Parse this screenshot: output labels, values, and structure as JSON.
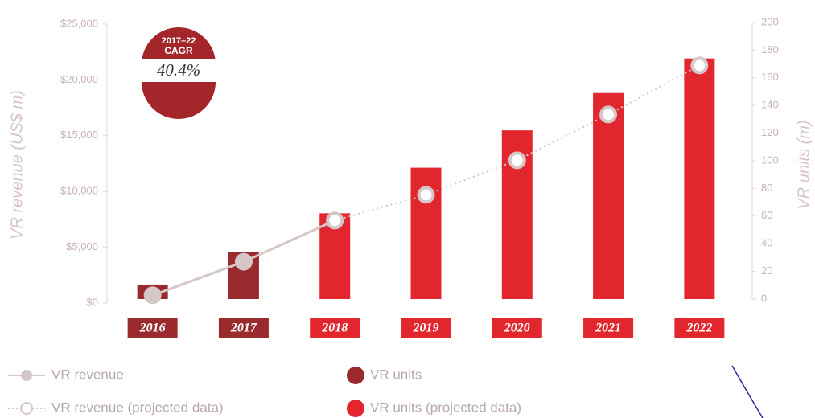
{
  "chart_data": {
    "type": "bar",
    "categories": [
      "2016",
      "2017",
      "2018",
      "2019",
      "2020",
      "2021",
      "2022"
    ],
    "series": [
      {
        "name": "VR revenue",
        "type": "line",
        "color": "#d5c7c7",
        "projected": false,
        "values": [
          700,
          3700,
          7400,
          null,
          null,
          null,
          null
        ]
      },
      {
        "name": "VR revenue (projected data)",
        "type": "line",
        "color": "#d5c7c7",
        "projected": true,
        "values": [
          null,
          null,
          7400,
          9700,
          12800,
          16900,
          21300
        ]
      },
      {
        "name": "VR units",
        "type": "bar",
        "axis": "y2",
        "color": "#9b2a2e",
        "values": [
          10.5,
          34,
          null,
          null,
          null,
          null,
          null
        ]
      },
      {
        "name": "VR units (projected data)",
        "type": "bar",
        "axis": "y2",
        "color": "#e1272d",
        "values": [
          null,
          null,
          62,
          95,
          122,
          149,
          174
        ]
      }
    ],
    "ylabel": "VR revenue (US$ m)",
    "y2label": "VR units (m)",
    "ylim": [
      0,
      25000
    ],
    "yticks": [
      {
        "value": 0,
        "label": "$0"
      },
      {
        "value": 5000,
        "label": "$5,000"
      },
      {
        "value": 10000,
        "label": "$10,000"
      },
      {
        "value": 15000,
        "label": "$15,000"
      },
      {
        "value": 20000,
        "label": "$20,000"
      },
      {
        "value": 25000,
        "label": "$25,000"
      }
    ],
    "y2lim": [
      0,
      200
    ],
    "y2ticks": [
      0,
      20,
      40,
      60,
      80,
      100,
      120,
      140,
      160,
      180,
      200
    ],
    "annotation": {
      "period": "2017–22",
      "label": "CAGR",
      "value": "40.4%"
    }
  }
}
